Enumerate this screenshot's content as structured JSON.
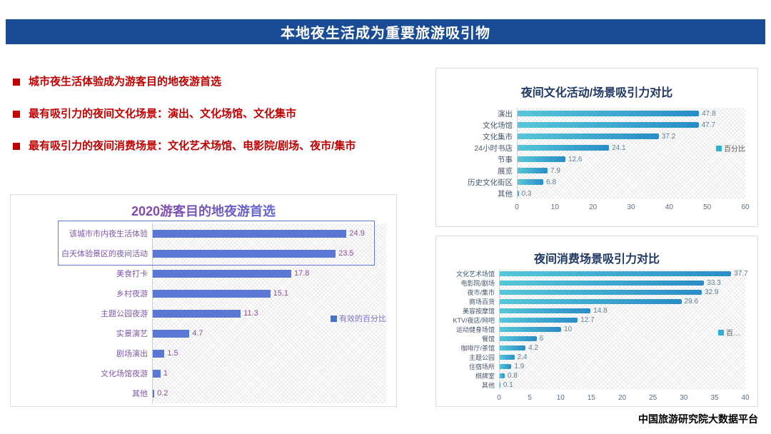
{
  "page": {
    "title": "本地夜生活成为重要旅游吸引物",
    "footer": "中国旅游研究院大数据平台"
  },
  "bullets": [
    "城市夜生活体验成为游客目的地夜游首选",
    "最有吸引力的夜间文化场景：演出、文化场馆、文化集市",
    "最有吸引力的夜间消费场景：文化艺术场馆、电影院/剧场、夜市/集市"
  ],
  "colors": {
    "header_bg": "#1A4B96",
    "bullet_red": "#C00000",
    "left_bar": "#5A77D4",
    "left_legend_marker": "#4472C4",
    "right_bar_start": "#56C7D8",
    "right_bar_end": "#2A8CC7",
    "right_legend_marker": "#2FAFD3"
  },
  "chart_data": [
    {
      "id": "destination-night-tour",
      "type": "bar",
      "orientation": "horizontal",
      "title": "2020游客目的地夜游首选",
      "categories": [
        "该城市市内夜生活体验",
        "白天体验景区的夜间活动",
        "美食打卡",
        "乡村夜游",
        "主题公园夜游",
        "实景演艺",
        "剧场演出",
        "文化场馆夜游",
        "其他"
      ],
      "values": [
        24.9,
        23.5,
        17.8,
        15.1,
        11.3,
        4.7,
        1.5,
        1,
        0.2
      ],
      "legend": "有效的百分比",
      "legend_position": "right-middle",
      "xlim": [
        0,
        30
      ],
      "x_ticks": null,
      "grid": false,
      "highlight_first_n": 2
    },
    {
      "id": "night-culture-attraction",
      "type": "bar",
      "orientation": "horizontal",
      "title": "夜间文化活动/场景吸引力对比",
      "categories": [
        "演出",
        "文化场馆",
        "文化集市",
        "24小时书店",
        "节事",
        "展览",
        "历史文化街区",
        "其他"
      ],
      "values": [
        47.8,
        47.7,
        37.2,
        24.1,
        12.6,
        7.9,
        6.8,
        0.3
      ],
      "legend": "百分比",
      "legend_position": "right-middle",
      "xlim": [
        0,
        60
      ],
      "x_ticks": [
        0,
        10,
        20,
        30,
        40,
        50,
        60
      ],
      "grid": false
    },
    {
      "id": "night-consumption-attraction",
      "type": "bar",
      "orientation": "horizontal",
      "title": "夜间消费场景吸引力对比",
      "categories": [
        "文化艺术场馆",
        "电影院/剧场",
        "夜市/集市",
        "商场百货",
        "美容按摩馆",
        "KTV/夜店/网吧",
        "运动健身场馆",
        "餐馆",
        "咖啡厅/茶馆",
        "主题公园",
        "住宿场所",
        "棋牌室",
        "其他"
      ],
      "values": [
        37.7,
        33.3,
        32.9,
        29.6,
        14.8,
        12.7,
        10,
        6,
        4.2,
        2.4,
        1.9,
        0.8,
        0.1
      ],
      "legend": "百…",
      "legend_position": "right-middle",
      "xlim": [
        0,
        40
      ],
      "x_ticks": [
        0,
        5,
        10,
        15,
        20,
        25,
        30,
        35,
        40
      ],
      "grid": false
    }
  ]
}
